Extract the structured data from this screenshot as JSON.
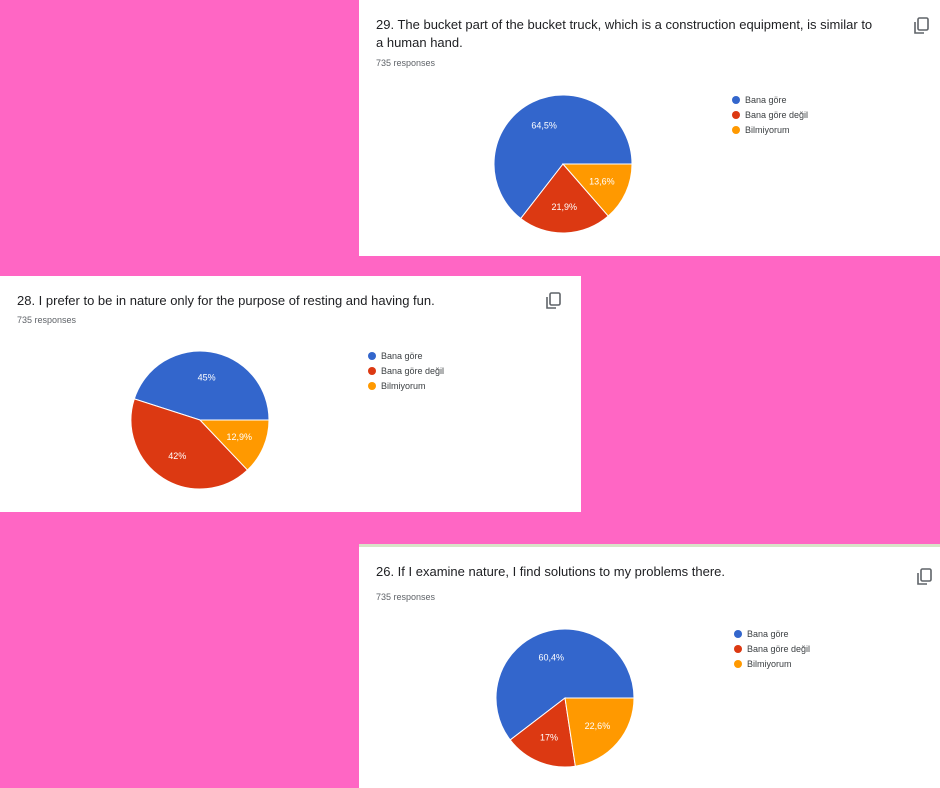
{
  "charts": [
    {
      "id": "q29",
      "title": "29. The bucket part of the bucket truck, which is a construction equipment, is similar to a human hand.",
      "responses": "735 responses"
    },
    {
      "id": "q28",
      "title": "28. I prefer to be in nature only for the purpose of resting and having fun.",
      "responses": "735 responses"
    },
    {
      "id": "q26",
      "title": "26. If I examine nature, I find solutions to my problems there.",
      "responses": "735 responses"
    }
  ],
  "legend_labels": [
    "Bana göre",
    "Bana göre değil",
    "Bilmiyorum"
  ],
  "colors": [
    "#3366cc",
    "#dc3912",
    "#ff9900"
  ],
  "icons": {
    "copy": "copy-icon"
  },
  "chart_data": [
    {
      "type": "pie",
      "title": "29. The bucket part of the bucket truck, which is a construction equipment, is similar to a human hand.",
      "categories": [
        "Bana göre",
        "Bana göre değil",
        "Bilmiyorum"
      ],
      "values": [
        64.5,
        21.9,
        13.6
      ],
      "labels": [
        "64,5%",
        "21,9%",
        "13,6%"
      ],
      "legend": "right"
    },
    {
      "type": "pie",
      "title": "28. I prefer to be in nature only for the purpose of resting and having fun.",
      "categories": [
        "Bana göre",
        "Bana göre değil",
        "Bilmiyorum"
      ],
      "values": [
        45,
        42,
        12.9
      ],
      "labels": [
        "45%",
        "42%",
        "12,9%"
      ],
      "legend": "right"
    },
    {
      "type": "pie",
      "title": "26. If I examine nature, I find solutions to my problems there.",
      "categories": [
        "Bana göre",
        "Bana göre değil",
        "Bilmiyorum"
      ],
      "values": [
        60.4,
        17,
        22.6
      ],
      "labels": [
        "60,4%",
        "17%",
        "22,6%"
      ],
      "legend": "right"
    }
  ]
}
